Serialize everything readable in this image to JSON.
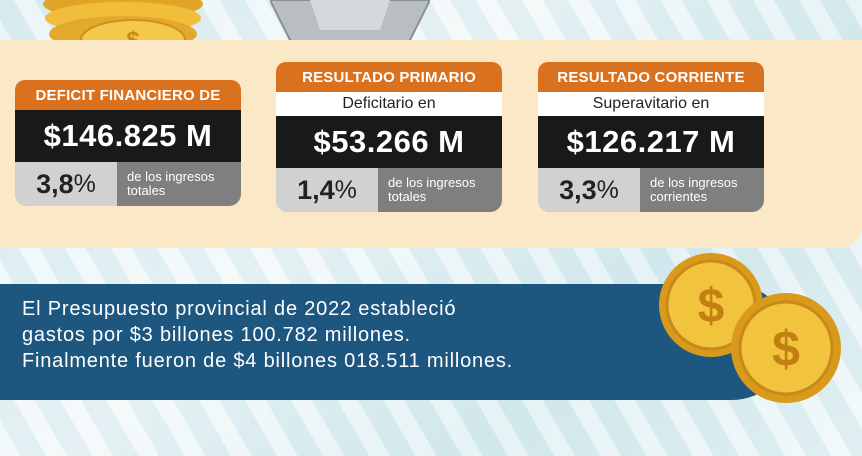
{
  "cards": [
    {
      "header": "DEFICIT FINANCIERO DE",
      "subtitle": "",
      "amount": "$146.825 M",
      "percent": "3,8",
      "percent_sign": "%",
      "desc_line1": "de los ingresos",
      "desc_line2": "totales"
    },
    {
      "header": "RESULTADO PRIMARIO",
      "subtitle": "Deficitario en",
      "amount": "$53.266 M",
      "percent": "1,4",
      "percent_sign": "%",
      "desc_line1": "de los ingresos",
      "desc_line2": "totales"
    },
    {
      "header": "RESULTADO CORRIENTE",
      "subtitle": "Superavitario en",
      "amount": "$126.217 M",
      "percent": "3,3",
      "percent_sign": "%",
      "desc_line1": "de los ingresos",
      "desc_line2": "corrientes"
    }
  ],
  "banner": {
    "line1": "El Presupuesto provincial de 2022 estableció",
    "line2": "gastos por $3 billones 100.782 millones.",
    "line3": "Finalmente fueron de $4 billones 018.511 millones."
  },
  "coin_symbol": "$",
  "colors": {
    "orange": "#d9711f",
    "dark": "#17191b",
    "panel": "#fbe8c6",
    "banner": "#1d567e",
    "gold": "#e8b530"
  }
}
